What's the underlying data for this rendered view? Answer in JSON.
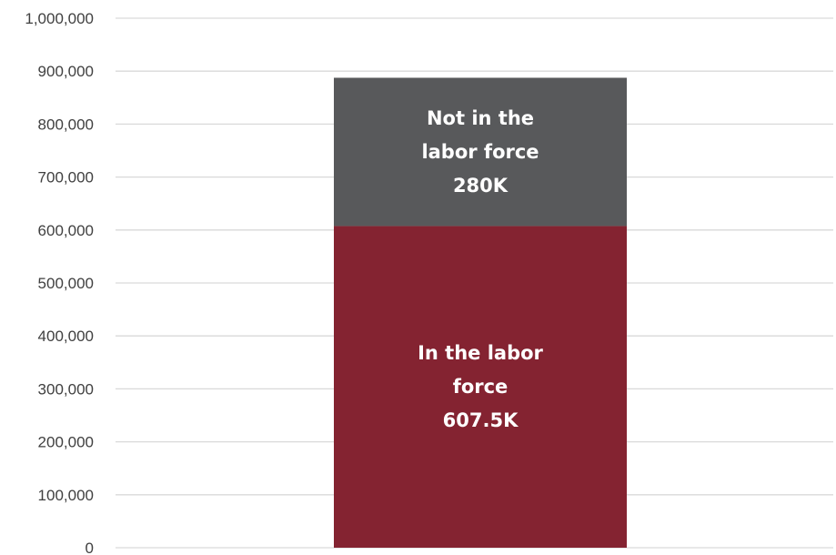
{
  "chart_data": {
    "type": "bar",
    "stacked": true,
    "title": "",
    "xlabel": "",
    "ylabel": "",
    "ylim": [
      0,
      1000000
    ],
    "y_ticks": [
      0,
      100000,
      200000,
      300000,
      400000,
      500000,
      600000,
      700000,
      800000,
      900000,
      1000000
    ],
    "y_tick_labels": [
      "0",
      "100,000",
      "200,000",
      "300,000",
      "400,000",
      "500,000",
      "600,000",
      "700,000",
      "800,000",
      "900,000",
      "1,000,000"
    ],
    "grid": true,
    "legend": "none",
    "categories": [
      ""
    ],
    "series": [
      {
        "key": "in_labor_force",
        "values": [
          607500
        ],
        "color": "#842331",
        "label_lines": [
          "In the labor",
          "force",
          "607.5K"
        ]
      },
      {
        "key": "not_in_labor_force",
        "values": [
          280000
        ],
        "color": "#58595b",
        "label_lines": [
          "Not in the",
          "labor force",
          "280K"
        ]
      }
    ]
  }
}
